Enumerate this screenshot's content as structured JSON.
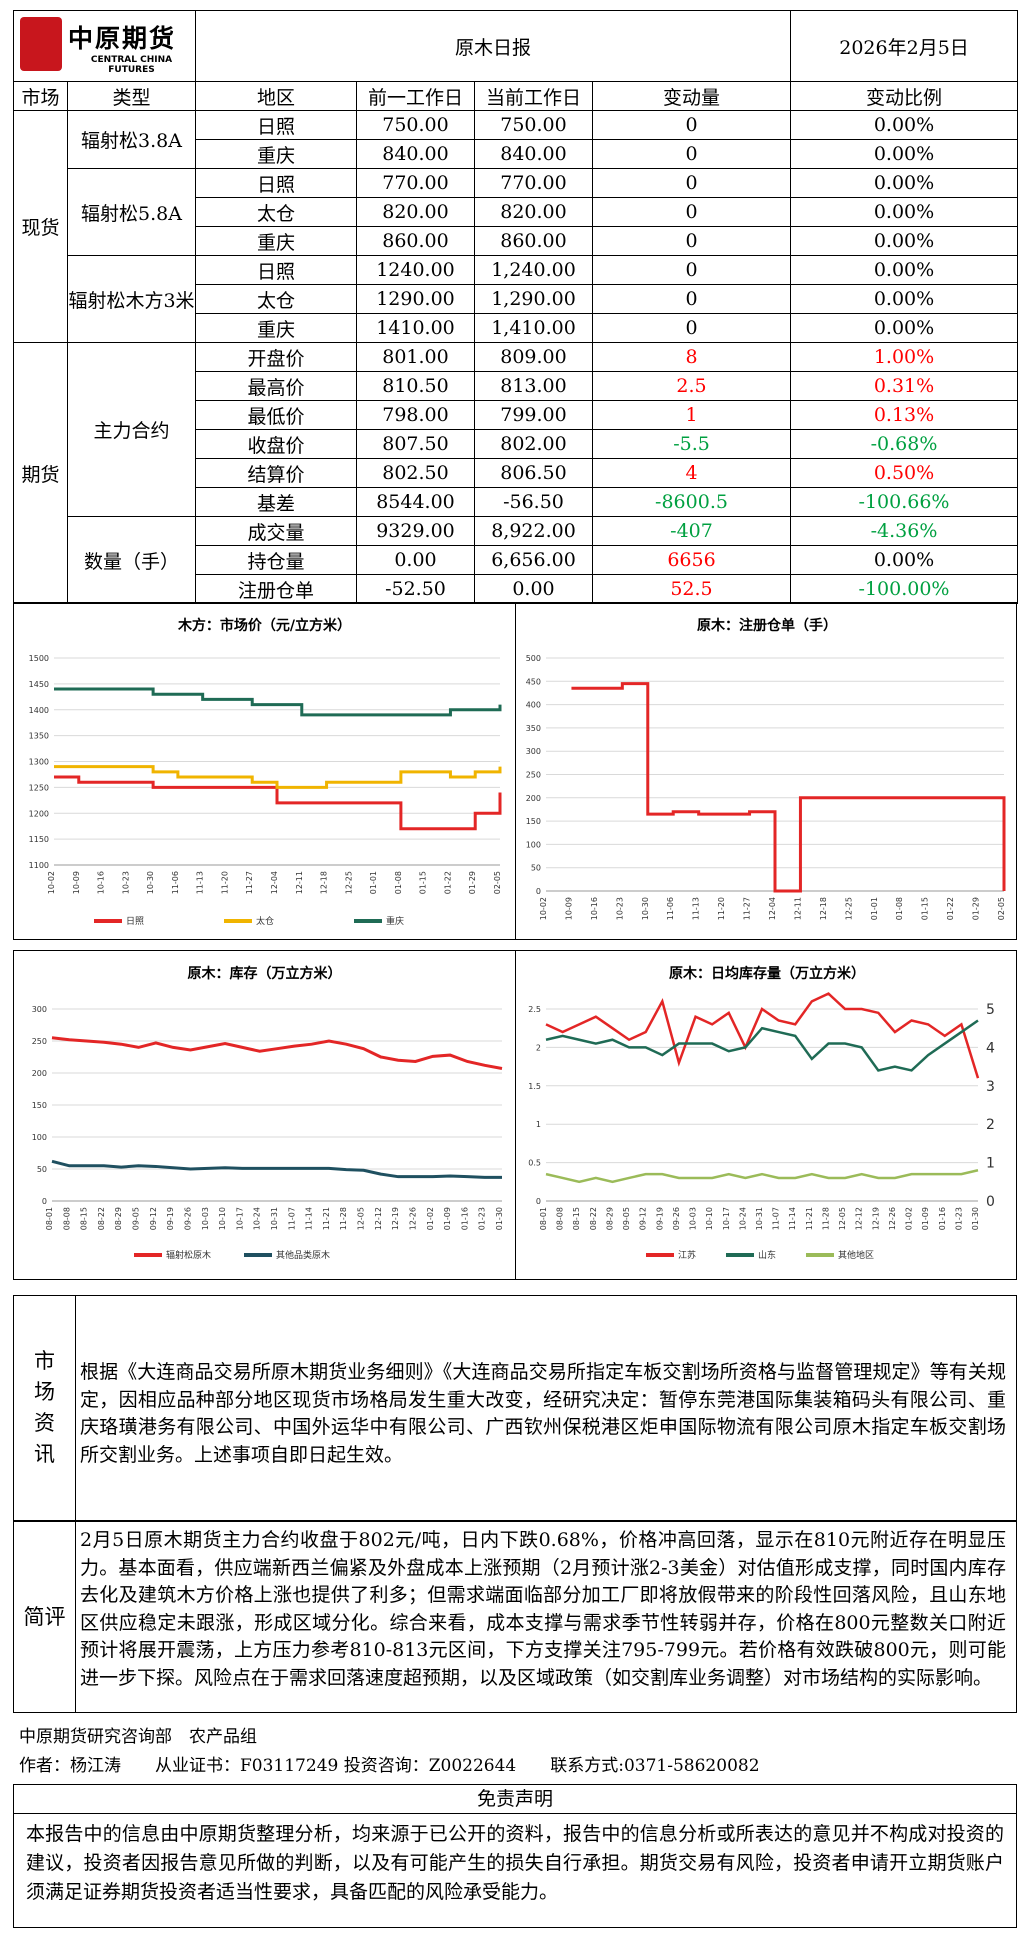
{
  "header": {
    "logo_cn": "中原期货",
    "logo_en": "CENTRAL CHINA FUTURES",
    "title": "原木日报",
    "date": "2026年2月5日"
  },
  "columns": [
    "市场",
    "类型",
    "地区",
    "前一工作日",
    "当前工作日",
    "变动量",
    "变动比例"
  ],
  "spot": {
    "market": "现货",
    "groups": [
      {
        "type": "辐射松3.8A",
        "rows": [
          {
            "region": "日照",
            "prev": "750.00",
            "curr": "750.00",
            "chg": "0",
            "pct": "0.00%"
          },
          {
            "region": "重庆",
            "prev": "840.00",
            "curr": "840.00",
            "chg": "0",
            "pct": "0.00%"
          }
        ]
      },
      {
        "type": "辐射松5.8A",
        "rows": [
          {
            "region": "日照",
            "prev": "770.00",
            "curr": "770.00",
            "chg": "0",
            "pct": "0.00%"
          },
          {
            "region": "太仓",
            "prev": "820.00",
            "curr": "820.00",
            "chg": "0",
            "pct": "0.00%"
          },
          {
            "region": "重庆",
            "prev": "860.00",
            "curr": "860.00",
            "chg": "0",
            "pct": "0.00%"
          }
        ]
      },
      {
        "type": "辐射松木方3米",
        "rows": [
          {
            "region": "日照",
            "prev": "1240.00",
            "curr": "1,240.00",
            "chg": "0",
            "pct": "0.00%"
          },
          {
            "region": "太仓",
            "prev": "1290.00",
            "curr": "1,290.00",
            "chg": "0",
            "pct": "0.00%"
          },
          {
            "region": "重庆",
            "prev": "1410.00",
            "curr": "1,410.00",
            "chg": "0",
            "pct": "0.00%"
          }
        ]
      }
    ]
  },
  "futures": {
    "market": "期货",
    "groups": [
      {
        "type": "主力合约",
        "rows": [
          {
            "region": "开盘价",
            "prev": "801.00",
            "curr": "809.00",
            "chg": "8",
            "pct": "1.00%",
            "color": "red"
          },
          {
            "region": "最高价",
            "prev": "810.50",
            "curr": "813.00",
            "chg": "2.5",
            "pct": "0.31%",
            "color": "red"
          },
          {
            "region": "最低价",
            "prev": "798.00",
            "curr": "799.00",
            "chg": "1",
            "pct": "0.13%",
            "color": "red"
          },
          {
            "region": "收盘价",
            "prev": "807.50",
            "curr": "802.00",
            "chg": "-5.5",
            "pct": "-0.68%",
            "color": "green"
          },
          {
            "region": "结算价",
            "prev": "802.50",
            "curr": "806.50",
            "chg": "4",
            "pct": "0.50%",
            "color": "red"
          },
          {
            "region": "基差",
            "prev": "8544.00",
            "curr": "-56.50",
            "chg": "-8600.5",
            "pct": "-100.66%",
            "color": "green"
          }
        ]
      },
      {
        "type": "数量（手）",
        "rows": [
          {
            "region": "成交量",
            "prev": "9329.00",
            "curr": "8,922.00",
            "chg": "-407",
            "pct": "-4.36%",
            "color": "green",
            "pct_color": "green"
          },
          {
            "region": "持仓量",
            "prev": "0.00",
            "curr": "6,656.00",
            "chg": "6656",
            "pct": "0.00%",
            "color": "red",
            "pct_color": "black"
          },
          {
            "region": "注册仓单",
            "prev": "-52.50",
            "curr": "0.00",
            "chg": "52.5",
            "pct": "-100.00%",
            "color": "red",
            "pct_color": "green"
          }
        ]
      }
    ]
  },
  "chart_data": [
    {
      "type": "line",
      "title": "木方：市场价（元/立方米）",
      "x": [
        "10-02",
        "10-09",
        "10-16",
        "10-23",
        "10-30",
        "11-06",
        "11-13",
        "11-20",
        "11-27",
        "12-04",
        "12-11",
        "12-18",
        "12-25",
        "01-01",
        "01-08",
        "01-15",
        "01-22",
        "01-29",
        "02-05"
      ],
      "ylim": [
        1100,
        1500
      ],
      "yticks": [
        1100,
        1150,
        1200,
        1250,
        1300,
        1350,
        1400,
        1450,
        1500
      ],
      "series": [
        {
          "name": "日照",
          "color": "#e32626",
          "values": [
            1270,
            1260,
            1260,
            1260,
            1250,
            1250,
            1250,
            1250,
            1250,
            1220,
            1220,
            1220,
            1220,
            1220,
            1170,
            1170,
            1170,
            1200,
            1240
          ]
        },
        {
          "name": "太仓",
          "color": "#f0b400",
          "values": [
            1290,
            1290,
            1290,
            1290,
            1280,
            1270,
            1270,
            1270,
            1260,
            1250,
            1250,
            1260,
            1260,
            1260,
            1280,
            1280,
            1270,
            1280,
            1290
          ]
        },
        {
          "name": "重庆",
          "color": "#1f6b55",
          "values": [
            1440,
            1440,
            1440,
            1440,
            1430,
            1430,
            1420,
            1420,
            1410,
            1410,
            1390,
            1390,
            1390,
            1390,
            1390,
            1390,
            1400,
            1400,
            1410
          ]
        }
      ]
    },
    {
      "type": "line",
      "title": "原木：注册仓单（手）",
      "x": [
        "10-02",
        "10-09",
        "10-16",
        "10-23",
        "10-30",
        "11-06",
        "11-13",
        "11-20",
        "11-27",
        "12-04",
        "12-11",
        "12-18",
        "12-25",
        "01-01",
        "01-08",
        "01-15",
        "01-22",
        "01-29",
        "02-05"
      ],
      "ylim": [
        0,
        500
      ],
      "yticks": [
        0,
        50,
        100,
        150,
        200,
        250,
        300,
        350,
        400,
        450,
        500
      ],
      "series": [
        {
          "name": "注册仓单",
          "color": "#e32626",
          "values": [
            null,
            435,
            435,
            445,
            165,
            170,
            165,
            165,
            170,
            0,
            200,
            200,
            200,
            200,
            200,
            200,
            200,
            200,
            0
          ]
        }
      ]
    },
    {
      "type": "line",
      "title": "原木：库存（万立方米）",
      "x": [
        "08-01",
        "08-08",
        "08-15",
        "08-22",
        "08-29",
        "09-05",
        "09-12",
        "09-19",
        "09-26",
        "10-03",
        "10-10",
        "10-17",
        "10-24",
        "10-31",
        "11-07",
        "11-14",
        "11-21",
        "11-28",
        "12-05",
        "12-12",
        "12-19",
        "12-26",
        "01-02",
        "01-09",
        "01-16",
        "01-23",
        "01-30"
      ],
      "ylim": [
        0,
        300
      ],
      "yticks": [
        0,
        50,
        100,
        150,
        200,
        250,
        300
      ],
      "series": [
        {
          "name": "辐射松原木",
          "color": "#e32626",
          "values": [
            255,
            252,
            250,
            248,
            245,
            240,
            247,
            240,
            236,
            241,
            246,
            240,
            234,
            238,
            242,
            245,
            250,
            245,
            238,
            225,
            220,
            218,
            226,
            228,
            218,
            212,
            207
          ]
        },
        {
          "name": "其他品类原木",
          "color": "#1f5060",
          "values": [
            62,
            55,
            55,
            55,
            53,
            55,
            54,
            52,
            50,
            51,
            52,
            51,
            51,
            51,
            51,
            51,
            51,
            49,
            48,
            42,
            38,
            38,
            38,
            39,
            38,
            37,
            37
          ]
        }
      ]
    },
    {
      "type": "line",
      "title": "原木：日均库存量（万立方米）",
      "x": [
        "08-01",
        "08-08",
        "08-15",
        "08-22",
        "08-29",
        "09-05",
        "09-12",
        "09-19",
        "09-26",
        "10-03",
        "10-10",
        "10-17",
        "10-24",
        "10-31",
        "11-07",
        "11-14",
        "11-21",
        "11-28",
        "12-05",
        "12-12",
        "12-19",
        "12-26",
        "01-02",
        "01-09",
        "01-16",
        "01-23",
        "01-30"
      ],
      "ylim": [
        0,
        2.5
      ],
      "yticks": [
        0,
        0.5,
        1,
        1.5,
        2,
        2.5
      ],
      "y2lim": [
        0,
        5
      ],
      "y2ticks": [
        0,
        1,
        2,
        3,
        4,
        5
      ],
      "series": [
        {
          "name": "江苏",
          "color": "#e32626",
          "values": [
            2.3,
            2.2,
            2.3,
            2.4,
            2.25,
            2.1,
            2.2,
            2.6,
            1.8,
            2.4,
            2.3,
            2.45,
            2.0,
            2.5,
            2.35,
            2.3,
            2.6,
            2.7,
            2.5,
            2.5,
            2.45,
            2.2,
            2.35,
            2.3,
            2.15,
            2.3,
            1.6
          ]
        },
        {
          "name": "山东",
          "color": "#1f6b55",
          "values": [
            2.1,
            2.15,
            2.1,
            2.05,
            2.1,
            2.0,
            2.0,
            1.9,
            2.05,
            2.05,
            2.05,
            1.95,
            2.0,
            2.25,
            2.2,
            2.15,
            1.85,
            2.05,
            2.05,
            2.0,
            1.7,
            1.75,
            1.7,
            1.9,
            2.05,
            2.2,
            2.35
          ]
        },
        {
          "name": "其他地区",
          "color": "#9bbb59",
          "values": [
            0.35,
            0.3,
            0.25,
            0.3,
            0.25,
            0.3,
            0.35,
            0.35,
            0.3,
            0.3,
            0.3,
            0.35,
            0.3,
            0.35,
            0.3,
            0.3,
            0.35,
            0.3,
            0.3,
            0.35,
            0.3,
            0.3,
            0.35,
            0.35,
            0.35,
            0.35,
            0.4
          ]
        }
      ]
    }
  ],
  "news": {
    "label": "市场资讯",
    "text": "根据《大连商品交易所原木期货业务细则》《大连商品交易所指定车板交割场所资格与监督管理规定》等有关规定，因相应品种部分地区现货市场格局发生重大改变，经研究决定：暂停东莞港国际集装箱码头有限公司、重庆珞璜港务有限公司、中国外运华中有限公司、广西钦州保税港区炬申国际物流有限公司原木指定车板交割场所交割业务。上述事项自即日起生效。"
  },
  "comment": {
    "label": "简评",
    "text": "2月5日原木期货主力合约收盘于802元/吨，日内下跌0.68%，价格冲高回落，显示在810元附近存在明显压力。基本面看，供应端新西兰偏紧及外盘成本上涨预期（2月预计涨2-3美金）对估值形成支撑，同时国内库存去化及建筑木方价格上涨也提供了利多；但需求端面临部分加工厂即将放假带来的阶段性回落风险，且山东地区供应稳定未跟涨，形成区域分化。综合来看，成本支撑与需求季节性转弱并存，价格在800元整数关口附近预计将展开震荡，上方压力参考810-813元区间，下方支撑关注795-799元。若价格有效跌破800元，则可能进一步下探。风险点在于需求回落速度超预期，以及区域政策（如交割库业务调整）对市场结构的实际影响。"
  },
  "footer": {
    "dept": "中原期货研究咨询部　农产品组",
    "author_line": "作者：杨江涛　　从业证书：F03117249 投资咨询：Z0022644　　联系方式:0371-58620082"
  },
  "disclaimer": {
    "title": "免责声明",
    "text": "本报告中的信息由中原期货整理分析，均来源于已公开的资料，报告中的信息分析或所表达的意见并不构成对投资的建议，投资者因报告意见所做的判断，以及有可能产生的损失自行承担。期货交易有风险，投资者申请开立期货账户须满足证券期货投资者适当性要求，具备匹配的风险承受能力。"
  }
}
